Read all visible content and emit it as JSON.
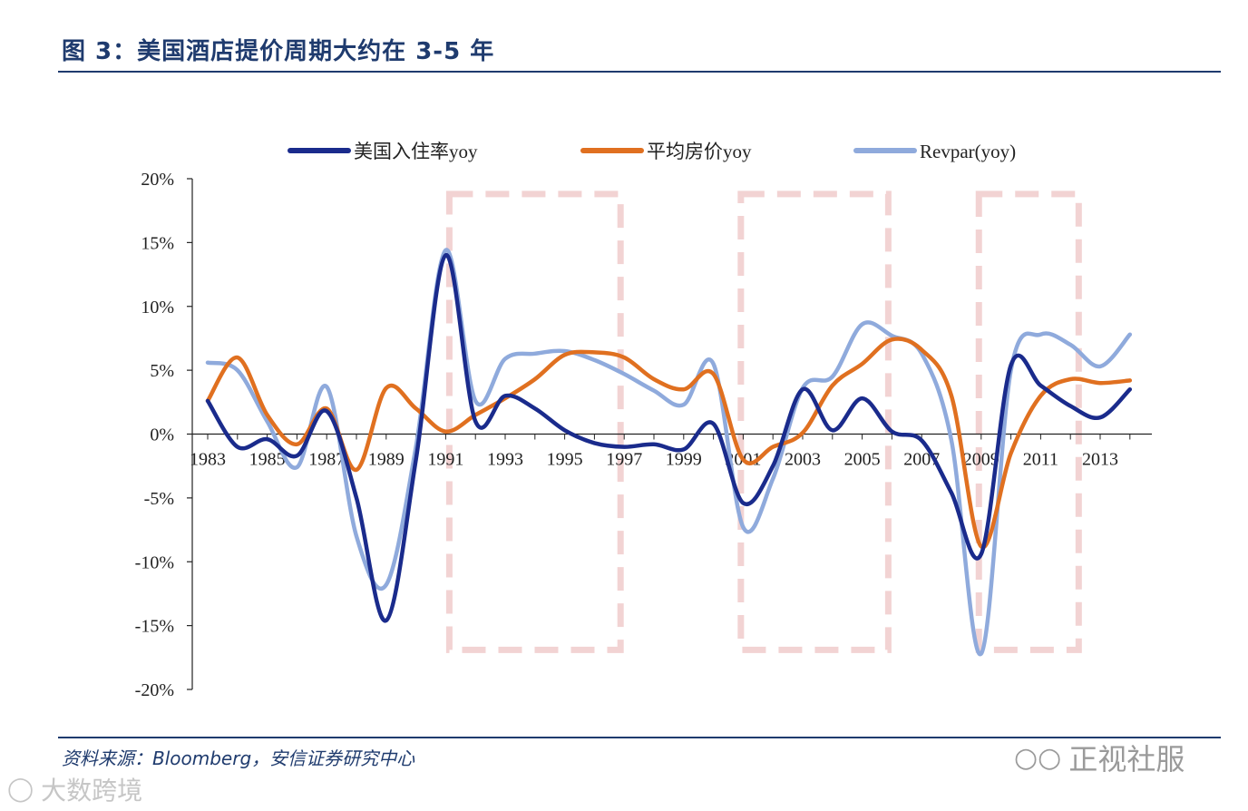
{
  "header": {
    "title": "图 3：美国酒店提价周期大约在 3-5 年"
  },
  "footer": {
    "source": "资料来源：Bloomberg，安信证券研究中心",
    "watermark_right": "正视社服",
    "watermark_left": "大数跨境"
  },
  "chart_data": {
    "type": "line",
    "x": [
      1983,
      1984,
      1985,
      1986,
      1987,
      1988,
      1989,
      1990,
      1991,
      1992,
      1993,
      1994,
      1995,
      1996,
      1997,
      1998,
      1999,
      2000,
      2001,
      2002,
      2003,
      2004,
      2005,
      2006,
      2007,
      2008,
      2009,
      2010,
      2011,
      2012,
      2013,
      2014
    ],
    "xticks": [
      "1983",
      "1985",
      "1987",
      "1989",
      "1991",
      "1993",
      "1995",
      "1997",
      "1999",
      "2001",
      "2003",
      "2005",
      "2007",
      "2009",
      "2011",
      "2013"
    ],
    "yticks": [
      "20%",
      "15%",
      "10%",
      "5%",
      "0%",
      "-5%",
      "-10%",
      "-15%",
      "-20%"
    ],
    "ylim": [
      -20,
      20
    ],
    "series": [
      {
        "name": "美国入住率yoy",
        "color": "#1a2b8c",
        "values": [
          2.6,
          -1.0,
          -0.4,
          -1.7,
          1.8,
          -5.0,
          -14.6,
          -2.0,
          14.0,
          1.0,
          3.0,
          2.0,
          0.3,
          -0.7,
          -1.0,
          -0.8,
          -1.2,
          0.8,
          -5.4,
          -2.5,
          3.5,
          0.3,
          2.8,
          0.2,
          -0.5,
          -4.6,
          -9.4,
          5.4,
          3.8,
          2.2,
          1.3,
          3.5
        ]
      },
      {
        "name": "平均房价yoy",
        "color": "#e07020",
        "values": [
          2.6,
          6.0,
          1.5,
          -0.8,
          2.0,
          -2.8,
          3.6,
          2.0,
          0.2,
          1.5,
          2.8,
          4.3,
          6.2,
          6.4,
          6.0,
          4.3,
          3.5,
          4.7,
          -2.0,
          -1.0,
          0.1,
          3.8,
          5.5,
          7.4,
          6.6,
          3.0,
          -8.8,
          -1.5,
          3.0,
          4.3,
          4.0,
          4.2
        ]
      },
      {
        "name": "Revpar(yoy)",
        "color": "#8faadc",
        "values": [
          5.6,
          5.0,
          1.0,
          -2.6,
          3.7,
          -8.0,
          -11.8,
          -1.0,
          14.4,
          2.6,
          5.9,
          6.3,
          6.5,
          5.8,
          4.7,
          3.4,
          2.3,
          5.5,
          -7.3,
          -3.5,
          3.6,
          4.5,
          8.6,
          7.7,
          6.3,
          -0.5,
          -17.2,
          5.0,
          7.8,
          7.0,
          5.3,
          7.8
        ]
      }
    ],
    "highlight_periods": [
      [
        1991,
        1997
      ],
      [
        2000.8,
        2006
      ],
      [
        2008.8,
        2012.4
      ]
    ],
    "legend": "top",
    "grid": false
  }
}
